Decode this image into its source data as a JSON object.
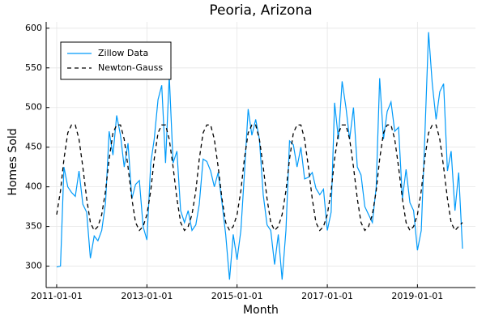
{
  "chart_data": {
    "type": "line",
    "title": "Peoria, Arizona",
    "x_label": "Month",
    "y_label": "Homes Sold",
    "x": [
      "2011-01-01",
      "2011-02-01",
      "2011-03-01",
      "2011-04-01",
      "2011-05-01",
      "2011-06-01",
      "2011-07-01",
      "2011-08-01",
      "2011-09-01",
      "2011-10-01",
      "2011-11-01",
      "2011-12-01",
      "2012-01-01",
      "2012-02-01",
      "2012-03-01",
      "2012-04-01",
      "2012-05-01",
      "2012-06-01",
      "2012-07-01",
      "2012-08-01",
      "2012-09-01",
      "2012-10-01",
      "2012-11-01",
      "2012-12-01",
      "2013-01-01",
      "2013-02-01",
      "2013-03-01",
      "2013-04-01",
      "2013-05-01",
      "2013-06-01",
      "2013-07-01",
      "2013-08-01",
      "2013-09-01",
      "2013-10-01",
      "2013-11-01",
      "2013-12-01",
      "2014-01-01",
      "2014-02-01",
      "2014-03-01",
      "2014-04-01",
      "2014-05-01",
      "2014-06-01",
      "2014-07-01",
      "2014-08-01",
      "2014-09-01",
      "2014-10-01",
      "2014-11-01",
      "2014-12-01",
      "2015-01-01",
      "2015-02-01",
      "2015-03-01",
      "2015-04-01",
      "2015-05-01",
      "2015-06-01",
      "2015-07-01",
      "2015-08-01",
      "2015-09-01",
      "2015-10-01",
      "2015-11-01",
      "2015-12-01",
      "2016-01-01",
      "2016-02-01",
      "2016-03-01",
      "2016-04-01",
      "2016-05-01",
      "2016-06-01",
      "2016-07-01",
      "2016-08-01",
      "2016-09-01",
      "2016-10-01",
      "2016-11-01",
      "2016-12-01",
      "2017-01-01",
      "2017-02-01",
      "2017-03-01",
      "2017-04-01",
      "2017-05-01",
      "2017-06-01",
      "2017-07-01",
      "2017-08-01",
      "2017-09-01",
      "2017-10-01",
      "2017-11-01",
      "2017-12-01",
      "2018-01-01",
      "2018-02-01",
      "2018-03-01",
      "2018-04-01",
      "2018-05-01",
      "2018-06-01",
      "2018-07-01",
      "2018-08-01",
      "2018-09-01",
      "2018-10-01",
      "2018-11-01",
      "2018-12-01",
      "2019-01-01",
      "2019-02-01",
      "2019-03-01",
      "2019-04-01",
      "2019-05-01",
      "2019-06-01",
      "2019-07-01",
      "2019-08-01",
      "2019-09-01",
      "2019-10-01",
      "2019-11-01",
      "2019-12-01",
      "2020-01-01"
    ],
    "series": [
      {
        "name": "Zillow Data",
        "color": "#009af9",
        "dash": false,
        "values": [
          299,
          300,
          425,
          400,
          393,
          388,
          420,
          378,
          368,
          310,
          338,
          332,
          345,
          380,
          470,
          440,
          490,
          465,
          425,
          455,
          385,
          403,
          408,
          350,
          333,
          430,
          460,
          510,
          528,
          430,
          540,
          430,
          445,
          370,
          355,
          370,
          345,
          352,
          378,
          435,
          432,
          420,
          400,
          418,
          380,
          340,
          283,
          340,
          308,
          345,
          415,
          498,
          465,
          485,
          460,
          390,
          352,
          345,
          302,
          340,
          283,
          345,
          458,
          453,
          425,
          450,
          410,
          412,
          418,
          398,
          390,
          397,
          345,
          368,
          506,
          460,
          533,
          500,
          460,
          500,
          425,
          415,
          375,
          365,
          355,
          400,
          537,
          460,
          495,
          507,
          470,
          475,
          385,
          422,
          380,
          370,
          320,
          345,
          460,
          595,
          530,
          485,
          520,
          530,
          420,
          445,
          370,
          418,
          322
        ]
      },
      {
        "name": "Newton-Gauss",
        "color": "#000000",
        "dash": true,
        "values": [
          365,
          395,
          435,
          468,
          478,
          478,
          460,
          425,
          385,
          355,
          345,
          350,
          365,
          395,
          435,
          468,
          478,
          478,
          460,
          425,
          385,
          355,
          345,
          350,
          365,
          395,
          435,
          468,
          478,
          478,
          460,
          425,
          385,
          355,
          345,
          350,
          365,
          395,
          435,
          468,
          478,
          478,
          460,
          425,
          385,
          355,
          345,
          350,
          365,
          395,
          435,
          468,
          478,
          478,
          460,
          425,
          385,
          355,
          345,
          350,
          365,
          395,
          435,
          468,
          478,
          478,
          460,
          425,
          385,
          355,
          345,
          350,
          365,
          395,
          435,
          468,
          478,
          478,
          460,
          425,
          385,
          355,
          345,
          350,
          365,
          395,
          435,
          468,
          478,
          478,
          460,
          425,
          385,
          355,
          345,
          350,
          365,
          395,
          435,
          468,
          478,
          478,
          460,
          425,
          385,
          355,
          345,
          350,
          355
        ]
      }
    ],
    "xlim": [
      "2010-10-08",
      "2020-04-15"
    ],
    "xticks": [
      "2011-01-01",
      "2013-01-01",
      "2015-01-01",
      "2017-01-01",
      "2019-01-01"
    ],
    "ylim": [
      273,
      608
    ],
    "yticks": [
      300,
      350,
      400,
      450,
      500,
      550,
      600
    ],
    "grid": true,
    "legend": "top-left"
  }
}
